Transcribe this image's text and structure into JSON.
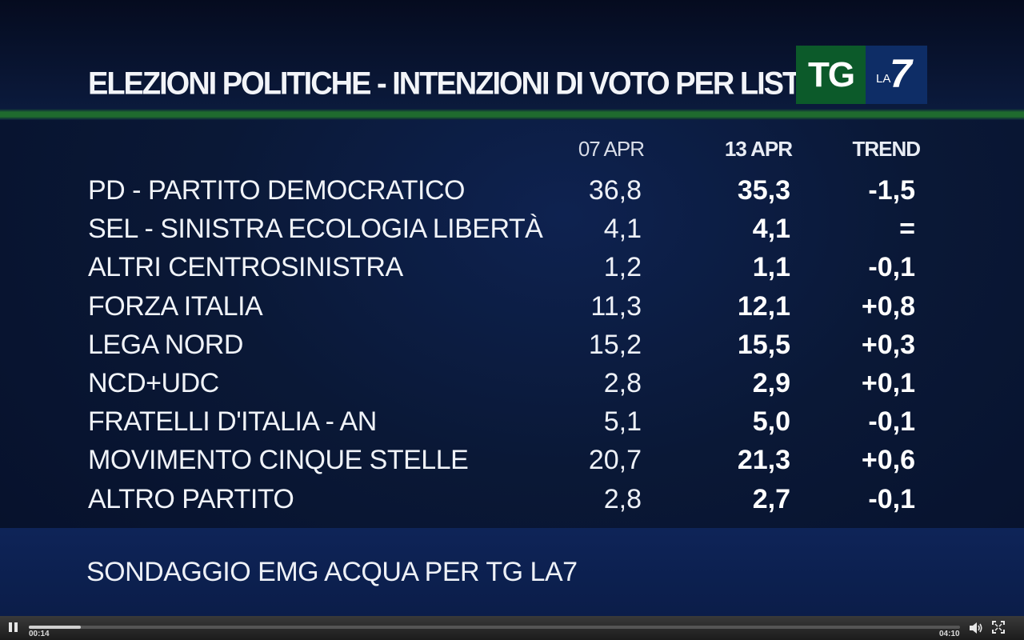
{
  "header": {
    "title": "ELEZIONI POLITICHE - INTENZIONI DI VOTO PER LISTA",
    "logo": {
      "tg": "TG",
      "la": "LA",
      "seven": "7",
      "tg_color": "#0c5a2a",
      "la7_color": "#0e2d66"
    }
  },
  "table": {
    "columns": [
      "07 APR",
      "13 APR",
      "TREND"
    ],
    "rows": [
      {
        "party": "PD - PARTITO DEMOCRATICO",
        "apr07": "36,8",
        "apr13": "35,3",
        "trend": "-1,5"
      },
      {
        "party": "SEL - SINISTRA ECOLOGIA LIBERTÀ",
        "apr07": "4,1",
        "apr13": "4,1",
        "trend": "="
      },
      {
        "party": "ALTRI CENTROSINISTRA",
        "apr07": "1,2",
        "apr13": "1,1",
        "trend": "-0,1"
      },
      {
        "party": "FORZA ITALIA",
        "apr07": "11,3",
        "apr13": "12,1",
        "trend": "+0,8"
      },
      {
        "party": "LEGA NORD",
        "apr07": "15,2",
        "apr13": "15,5",
        "trend": "+0,3"
      },
      {
        "party": "NCD+UDC",
        "apr07": "2,8",
        "apr13": "2,9",
        "trend": "+0,1"
      },
      {
        "party": "FRATELLI D'ITALIA - AN",
        "apr07": "5,1",
        "apr13": "5,0",
        "trend": "-0,1"
      },
      {
        "party": "MOVIMENTO CINQUE STELLE",
        "apr07": "20,7",
        "apr13": "21,3",
        "trend": "+0,6"
      },
      {
        "party": "ALTRO PARTITO",
        "apr07": "2,8",
        "apr13": "2,7",
        "trend": "-0,1"
      }
    ]
  },
  "footer": {
    "source": "SONDAGGIO EMG ACQUA PER TG LA7"
  },
  "player": {
    "current_time": "00:14",
    "total_time": "04:10",
    "progress": 0.056,
    "icons": [
      "pause-icon",
      "volume-icon",
      "fullscreen-icon"
    ]
  }
}
